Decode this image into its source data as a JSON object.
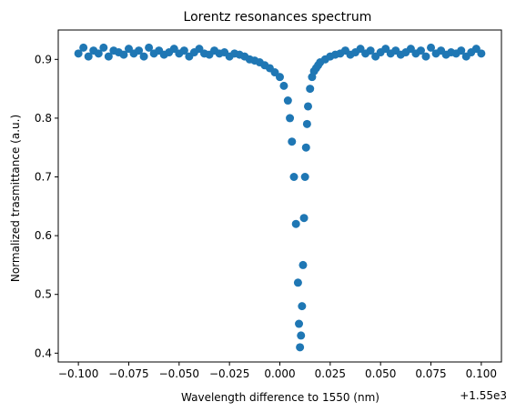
{
  "chart_data": {
    "type": "scatter",
    "title": "Lorentz resonances spectrum",
    "xlabel": "Wavelength difference to 1550 (nm)",
    "ylabel": "Normalized trasmittance (a.u.)",
    "x_offset_label": "+1.55e3",
    "xlim": [
      -0.11,
      0.11
    ],
    "ylim": [
      0.385,
      0.95
    ],
    "xticks": [
      -0.1,
      -0.075,
      -0.05,
      -0.025,
      0.0,
      0.025,
      0.05,
      0.075,
      0.1
    ],
    "xtick_labels": [
      "−0.100",
      "−0.075",
      "−0.050",
      "−0.025",
      "0.000",
      "0.025",
      "0.050",
      "0.075",
      "0.100"
    ],
    "yticks": [
      0.4,
      0.5,
      0.6,
      0.7,
      0.8,
      0.9
    ],
    "ytick_labels": [
      "0.4",
      "0.5",
      "0.6",
      "0.7",
      "0.8",
      "0.9"
    ],
    "grid": false,
    "marker_color": "#1f77b4",
    "series": [
      {
        "x": [
          -0.1,
          -0.0975,
          -0.095,
          -0.0925,
          -0.09,
          -0.0875,
          -0.085,
          -0.0825,
          -0.08,
          -0.0775,
          -0.075,
          -0.0725,
          -0.07,
          -0.0675,
          -0.065,
          -0.0625,
          -0.06,
          -0.0575,
          -0.055,
          -0.0525,
          -0.05,
          -0.0475,
          -0.045,
          -0.0425,
          -0.04,
          -0.0375,
          -0.035,
          -0.0325,
          -0.03,
          -0.0275,
          -0.025,
          -0.0225,
          -0.02,
          -0.0175,
          -0.015,
          -0.0125,
          -0.01,
          -0.0075,
          -0.005,
          -0.0025,
          0.0,
          0.002,
          0.004,
          0.005,
          0.006,
          0.007,
          0.008,
          0.009,
          0.0095,
          0.01,
          0.0105,
          0.011,
          0.0115,
          0.012,
          0.0125,
          0.013,
          0.0135,
          0.014,
          0.015,
          0.016,
          0.017,
          0.018,
          0.019,
          0.02,
          0.0225,
          0.025,
          0.0275,
          0.03,
          0.0325,
          0.035,
          0.0375,
          0.04,
          0.0425,
          0.045,
          0.0475,
          0.05,
          0.0525,
          0.055,
          0.0575,
          0.06,
          0.0625,
          0.065,
          0.0675,
          0.07,
          0.0725,
          0.075,
          0.0775,
          0.08,
          0.0825,
          0.085,
          0.0875,
          0.09,
          0.0925,
          0.095,
          0.0975,
          0.1
        ],
        "y": [
          0.91,
          0.92,
          0.905,
          0.915,
          0.91,
          0.92,
          0.905,
          0.915,
          0.912,
          0.908,
          0.918,
          0.91,
          0.915,
          0.905,
          0.92,
          0.91,
          0.915,
          0.908,
          0.912,
          0.918,
          0.91,
          0.915,
          0.905,
          0.912,
          0.918,
          0.91,
          0.908,
          0.915,
          0.91,
          0.912,
          0.905,
          0.91,
          0.908,
          0.905,
          0.9,
          0.898,
          0.895,
          0.89,
          0.885,
          0.878,
          0.87,
          0.855,
          0.83,
          0.8,
          0.76,
          0.7,
          0.62,
          0.52,
          0.45,
          0.41,
          0.43,
          0.48,
          0.55,
          0.63,
          0.7,
          0.75,
          0.79,
          0.82,
          0.85,
          0.87,
          0.88,
          0.885,
          0.89,
          0.895,
          0.9,
          0.905,
          0.908,
          0.91,
          0.915,
          0.908,
          0.912,
          0.918,
          0.91,
          0.915,
          0.905,
          0.912,
          0.918,
          0.91,
          0.915,
          0.908,
          0.912,
          0.918,
          0.91,
          0.915,
          0.905,
          0.92,
          0.91,
          0.915,
          0.908,
          0.912,
          0.91,
          0.915,
          0.905,
          0.912,
          0.918,
          0.91
        ]
      }
    ]
  }
}
